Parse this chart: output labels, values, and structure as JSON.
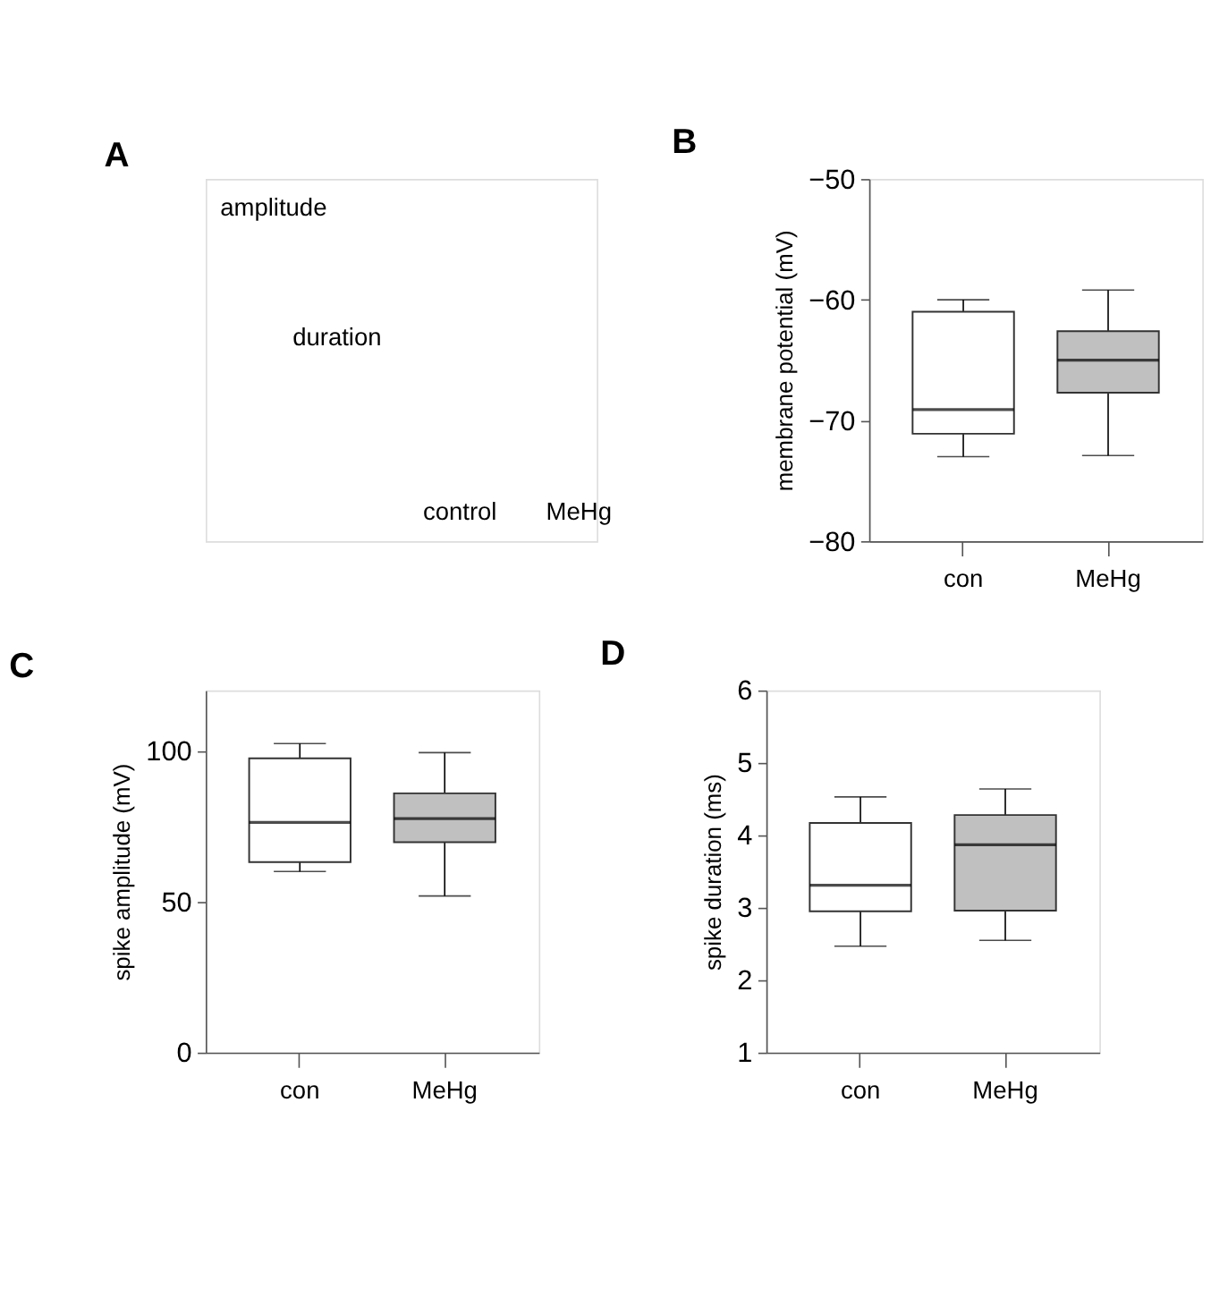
{
  "chart_data": [
    {
      "type": "other",
      "title": "A",
      "annotations": [
        "amplitude",
        "duration",
        "control",
        "MeHg"
      ]
    },
    {
      "type": "box",
      "title": "B",
      "ylabel": "membrane potential (mV)",
      "categories": [
        "con",
        "MeHg"
      ],
      "colors": [
        "#ffffff",
        "#c0c0c0"
      ],
      "ylim": [
        -80,
        -50
      ],
      "yticks": [
        -80,
        -70,
        -60,
        -50
      ],
      "grid": false,
      "boxes": [
        {
          "low": -73.0,
          "q1": -71.1,
          "median": -69.1,
          "q3": -61.0,
          "high": -60.0
        },
        {
          "low": -72.9,
          "q1": -67.7,
          "median": -65.0,
          "q3": -62.6,
          "high": -59.2
        }
      ]
    },
    {
      "type": "box",
      "title": "C",
      "ylabel": "spike amplitude (mV)",
      "categories": [
        "con",
        "MeHg"
      ],
      "colors": [
        "#ffffff",
        "#c0c0c0"
      ],
      "ylim": [
        0,
        120
      ],
      "yticks": [
        0,
        50,
        100
      ],
      "grid": false,
      "boxes": [
        {
          "low": 60.0,
          "q1": 63.1,
          "median": 76.3,
          "q3": 97.5,
          "high": 102.4
        },
        {
          "low": 51.9,
          "q1": 69.7,
          "median": 77.5,
          "q3": 85.9,
          "high": 99.4
        }
      ]
    },
    {
      "type": "box",
      "title": "D",
      "ylabel": "spike duration (ms)",
      "categories": [
        "con",
        "MeHg"
      ],
      "colors": [
        "#ffffff",
        "#c0c0c0"
      ],
      "ylim": [
        1,
        6
      ],
      "yticks": [
        1,
        2,
        3,
        4,
        5,
        6
      ],
      "grid": false,
      "boxes": [
        {
          "low": 2.47,
          "q1": 2.95,
          "median": 3.31,
          "q3": 4.17,
          "high": 4.53
        },
        {
          "low": 2.55,
          "q1": 2.96,
          "median": 3.87,
          "q3": 4.28,
          "high": 4.64
        }
      ]
    }
  ]
}
